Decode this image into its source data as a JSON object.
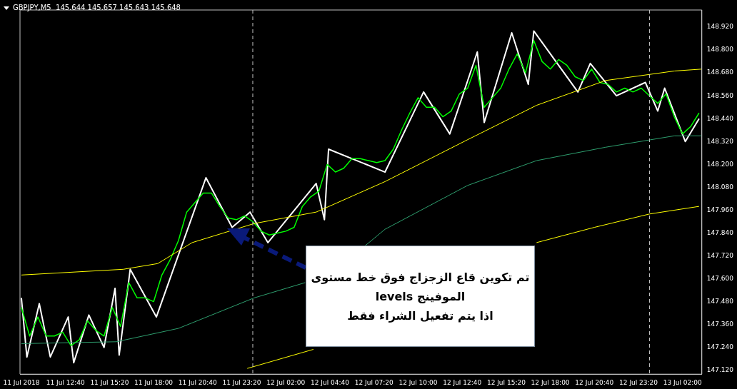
{
  "chart_data": {
    "type": "line",
    "title": "GBPJPY,M5  145.644 145.657 145.643 145.648",
    "xlim": [
      "2018-07-11T09:55",
      "2018-07-13T03:10"
    ],
    "xticks": [
      {
        "value": "2018-07-11T10:00",
        "label": "11 Jul 2018"
      },
      {
        "value": "2018-07-11T12:40",
        "label": "11 Jul 12:40"
      },
      {
        "value": "2018-07-11T15:20",
        "label": "11 Jul 15:20"
      },
      {
        "value": "2018-07-11T18:00",
        "label": "11 Jul 18:00"
      },
      {
        "value": "2018-07-11T20:40",
        "label": "11 Jul 20:40"
      },
      {
        "value": "2018-07-11T23:20",
        "label": "11 Jul 23:20"
      },
      {
        "value": "2018-07-12T02:00",
        "label": "12 Jul 02:00"
      },
      {
        "value": "2018-07-12T04:40",
        "label": "12 Jul 04:40"
      },
      {
        "value": "2018-07-12T07:20",
        "label": "12 Jul 07:20"
      },
      {
        "value": "2018-07-12T10:00",
        "label": "12 Jul 10:00"
      },
      {
        "value": "2018-07-12T12:40",
        "label": "12 Jul 12:40"
      },
      {
        "value": "2018-07-12T15:20",
        "label": "12 Jul 15:20"
      },
      {
        "value": "2018-07-12T18:00",
        "label": "12 Jul 18:00"
      },
      {
        "value": "2018-07-12T20:40",
        "label": "12 Jul 20:40"
      },
      {
        "value": "2018-07-12T23:20",
        "label": "12 Jul 23:20"
      },
      {
        "value": "2018-07-13T02:00",
        "label": "13 Jul 02:00"
      }
    ],
    "ylim": [
      147.1,
      149.01
    ],
    "yticks": [
      {
        "value": 147.12,
        "label": "147.120"
      },
      {
        "value": 147.24,
        "label": "147.240"
      },
      {
        "value": 147.36,
        "label": "147.360"
      },
      {
        "value": 147.48,
        "label": "147.480"
      },
      {
        "value": 147.6,
        "label": "147.600"
      },
      {
        "value": 147.72,
        "label": "147.720"
      },
      {
        "value": 147.84,
        "label": "147.840"
      },
      {
        "value": 147.96,
        "label": "147.960"
      },
      {
        "value": 148.08,
        "label": "148.080"
      },
      {
        "value": 148.2,
        "label": "148.200"
      },
      {
        "value": 148.32,
        "label": "148.320"
      },
      {
        "value": 148.44,
        "label": "148.440"
      },
      {
        "value": 148.56,
        "label": "148.560"
      },
      {
        "value": 148.68,
        "label": "148.680"
      },
      {
        "value": 148.8,
        "label": "148.800"
      },
      {
        "value": 148.92,
        "label": "148.920"
      }
    ],
    "marker": "none",
    "ref_lines": [
      {
        "axis": "x",
        "value": "2018-07-12T00:00",
        "label": null,
        "color": "#c0c0c0",
        "line_style": "dashed"
      },
      {
        "axis": "x",
        "value": "2018-07-13T00:00",
        "label": null,
        "color": "#c0c0c0",
        "line_style": "dashed"
      }
    ],
    "annotations": [
      "تم تكوين قاع الزجزاج فوق خط مستوى\nالموفينج levels\nاذا يتم تفعيل الشراء فقط"
    ],
    "series": [
      {
        "color": "#ffff00",
        "x": [
          "2018-07-11T10:00",
          "2018-07-11T16:10",
          "2018-07-11T18:15",
          "2018-07-11T20:20",
          "2018-07-12T00:05",
          "2018-07-12T03:50",
          "2018-07-12T08:00",
          "2018-07-12T13:00",
          "2018-07-12T17:10",
          "2018-07-12T21:20",
          "2018-07-13T01:30",
          "2018-07-13T03:10"
        ],
        "values": [
          147.62,
          147.65,
          147.68,
          147.79,
          147.89,
          147.95,
          148.11,
          148.33,
          148.51,
          148.64,
          148.69,
          148.7
        ]
      },
      {
        "color": "#2e9e6e",
        "x": [
          "2018-07-11T10:00",
          "2018-07-11T15:45",
          "2018-07-11T19:30",
          "2018-07-12T00:05",
          "2018-07-12T03:10",
          "2018-07-12T05:00",
          "2018-07-12T06:45",
          "2018-07-12T08:00",
          "2018-07-12T13:00",
          "2018-07-12T17:10",
          "2018-07-12T21:20",
          "2018-07-13T01:30",
          "2018-07-13T03:10"
        ],
        "values": [
          147.26,
          147.27,
          147.34,
          147.5,
          147.58,
          null,
          147.77,
          147.86,
          148.09,
          148.22,
          148.29,
          148.35,
          148.35
        ]
      },
      {
        "color": "#ffff00",
        "x": [
          "2018-07-11T23:40",
          "2018-07-12T03:40",
          "2018-07-12T10:00",
          "2018-07-12T17:10",
          "2018-07-12T20:40",
          "2018-07-13T00:00",
          "2018-07-13T03:00"
        ],
        "values": [
          147.13,
          147.23,
          null,
          147.79,
          147.87,
          147.94,
          147.98
        ]
      },
      {
        "color": "#00ff00",
        "x": [
          "2018-07-11T10:00",
          "2018-07-11T10:30",
          "2018-07-11T11:00",
          "2018-07-11T11:30",
          "2018-07-11T12:00",
          "2018-07-11T12:30",
          "2018-07-11T13:00",
          "2018-07-11T13:30",
          "2018-07-11T14:00",
          "2018-07-11T14:30",
          "2018-07-11T15:00",
          "2018-07-11T15:30",
          "2018-07-11T16:00",
          "2018-07-11T16:30",
          "2018-07-11T17:00",
          "2018-07-11T17:30",
          "2018-07-11T18:00",
          "2018-07-11T18:30",
          "2018-07-11T19:00",
          "2018-07-11T19:30",
          "2018-07-11T20:00",
          "2018-07-11T20:30",
          "2018-07-11T21:00",
          "2018-07-11T21:30",
          "2018-07-11T22:00",
          "2018-07-11T22:30",
          "2018-07-11T23:00",
          "2018-07-11T23:30",
          "2018-07-12T00:00",
          "2018-07-12T00:30",
          "2018-07-12T01:00",
          "2018-07-12T01:30",
          "2018-07-12T02:00",
          "2018-07-12T02:30",
          "2018-07-12T03:00",
          "2018-07-12T03:30",
          "2018-07-12T04:00",
          "2018-07-12T04:30",
          "2018-07-12T05:00",
          "2018-07-12T05:30",
          "2018-07-12T06:00",
          "2018-07-12T06:30",
          "2018-07-12T07:00",
          "2018-07-12T07:30",
          "2018-07-12T08:00",
          "2018-07-12T08:30",
          "2018-07-12T09:00",
          "2018-07-12T09:30",
          "2018-07-12T10:00",
          "2018-07-12T10:30",
          "2018-07-12T11:00",
          "2018-07-12T11:30",
          "2018-07-12T12:00",
          "2018-07-12T12:30",
          "2018-07-12T13:00",
          "2018-07-12T13:30",
          "2018-07-12T14:00",
          "2018-07-12T14:30",
          "2018-07-12T15:00",
          "2018-07-12T15:30",
          "2018-07-12T16:00",
          "2018-07-12T16:30",
          "2018-07-12T17:00",
          "2018-07-12T17:30",
          "2018-07-12T18:00",
          "2018-07-12T18:30",
          "2018-07-12T19:00",
          "2018-07-12T19:30",
          "2018-07-12T20:00",
          "2018-07-12T20:30",
          "2018-07-12T21:00",
          "2018-07-12T21:30",
          "2018-07-12T22:00",
          "2018-07-12T22:30",
          "2018-07-12T23:00",
          "2018-07-12T23:30",
          "2018-07-13T00:00",
          "2018-07-13T00:30",
          "2018-07-13T01:00",
          "2018-07-13T01:30",
          "2018-07-13T02:00",
          "2018-07-13T02:30",
          "2018-07-13T03:00"
        ],
        "values": [
          147.45,
          147.3,
          147.4,
          147.3,
          147.3,
          147.32,
          147.25,
          147.28,
          147.38,
          147.33,
          147.3,
          147.45,
          147.35,
          147.58,
          147.5,
          147.5,
          147.48,
          147.62,
          147.7,
          147.8,
          147.95,
          148.0,
          148.05,
          148.05,
          147.98,
          147.92,
          147.91,
          147.93,
          147.9,
          147.85,
          147.83,
          147.84,
          147.85,
          147.87,
          147.98,
          148.03,
          148.06,
          148.2,
          148.16,
          148.18,
          148.23,
          148.23,
          148.22,
          148.21,
          148.22,
          148.28,
          148.38,
          148.47,
          148.55,
          148.5,
          148.5,
          148.45,
          148.48,
          148.57,
          148.6,
          148.72,
          148.5,
          148.55,
          148.6,
          148.7,
          148.78,
          148.68,
          148.85,
          148.74,
          148.7,
          148.75,
          148.72,
          148.66,
          148.64,
          148.7,
          148.63,
          148.62,
          148.58,
          148.6,
          148.58,
          148.6,
          148.56,
          148.52,
          148.57,
          148.45,
          148.36,
          148.4,
          148.47
        ]
      },
      {
        "color": "#ffffff",
        "x": [
          "2018-07-11T10:00",
          "2018-07-11T10:20",
          "2018-07-11T11:05",
          "2018-07-11T11:45",
          "2018-07-11T12:50",
          "2018-07-11T13:10",
          "2018-07-11T14:05",
          "2018-07-11T15:00",
          "2018-07-11T15:40",
          "2018-07-11T15:55",
          "2018-07-11T16:35",
          "2018-07-11T18:10",
          "2018-07-11T21:10",
          "2018-07-11T22:45",
          "2018-07-11T23:50",
          "2018-07-12T00:55",
          "2018-07-12T03:50",
          "2018-07-12T04:20",
          "2018-07-12T04:35",
          "2018-07-12T08:00",
          "2018-07-12T10:20",
          "2018-07-12T11:55",
          "2018-07-12T13:35",
          "2018-07-12T14:00",
          "2018-07-12T15:40",
          "2018-07-12T16:40",
          "2018-07-12T17:00",
          "2018-07-12T19:40",
          "2018-07-12T20:25",
          "2018-07-12T22:00",
          "2018-07-12T23:45",
          "2018-07-13T00:30",
          "2018-07-13T00:55",
          "2018-07-13T02:10",
          "2018-07-13T03:00"
        ],
        "values": [
          147.5,
          147.19,
          147.47,
          147.19,
          147.4,
          147.16,
          147.41,
          147.24,
          147.55,
          147.2,
          147.65,
          147.4,
          148.13,
          147.87,
          147.95,
          147.79,
          148.1,
          147.91,
          148.28,
          148.16,
          148.58,
          148.36,
          148.79,
          148.42,
          148.89,
          148.62,
          148.9,
          148.58,
          148.73,
          148.56,
          148.63,
          148.48,
          148.6,
          148.32,
          148.44
        ]
      }
    ]
  }
}
